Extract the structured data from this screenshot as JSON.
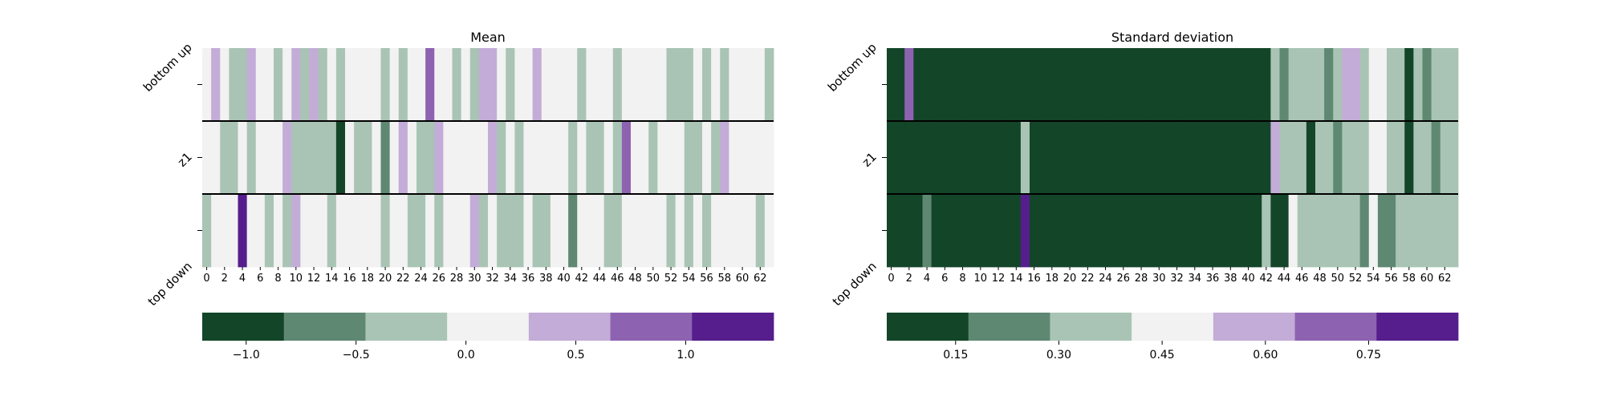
{
  "chart_data": [
    {
      "type": "heatmap",
      "title": "Mean",
      "rows": [
        "bottom up",
        "z1",
        "top down"
      ],
      "columns": [
        0,
        1,
        2,
        3,
        4,
        5,
        6,
        7,
        8,
        9,
        10,
        11,
        12,
        13,
        14,
        15,
        16,
        17,
        18,
        19,
        20,
        21,
        22,
        23,
        24,
        25,
        26,
        27,
        28,
        29,
        30,
        31,
        32,
        33,
        34,
        35,
        36,
        37,
        38,
        39,
        40,
        41,
        42,
        43,
        44,
        45,
        46,
        47,
        48,
        49,
        50,
        51,
        52,
        53,
        54,
        55,
        56,
        57,
        58,
        59,
        60,
        61,
        62,
        63
      ],
      "x_tick_labels": [
        "0",
        "2",
        "4",
        "6",
        "8",
        "10",
        "12",
        "14",
        "16",
        "18",
        "20",
        "22",
        "24",
        "26",
        "28",
        "30",
        "32",
        "34",
        "36",
        "38",
        "40",
        "42",
        "44",
        "46",
        "48",
        "50",
        "52",
        "54",
        "56",
        "58",
        "60",
        "62"
      ],
      "color_levels": [
        "#134529",
        "#5e8872",
        "#a9c4b5",
        "#f2f2f2",
        "#c3acd7",
        "#8d63b1",
        "#561e8c"
      ],
      "level_values": [
        -1.0,
        -0.6,
        -0.3,
        0.0,
        0.5,
        0.8,
        1.2
      ],
      "cells": [
        [
          3,
          4,
          3,
          2,
          2,
          4,
          3,
          3,
          2,
          3,
          4,
          2,
          4,
          2,
          3,
          2,
          3,
          3,
          3,
          3,
          2,
          3,
          2,
          3,
          3,
          5,
          3,
          3,
          2,
          3,
          2,
          4,
          4,
          3,
          2,
          3,
          3,
          4,
          3,
          3,
          3,
          3,
          2,
          3,
          3,
          3,
          2,
          3,
          3,
          3,
          3,
          3,
          2,
          2,
          2,
          3,
          2,
          3,
          2,
          3,
          3,
          3,
          3,
          2
        ],
        [
          3,
          3,
          2,
          2,
          3,
          2,
          3,
          3,
          3,
          4,
          2,
          2,
          2,
          2,
          2,
          0,
          3,
          2,
          2,
          3,
          1,
          3,
          4,
          3,
          2,
          2,
          4,
          3,
          3,
          3,
          3,
          3,
          4,
          2,
          3,
          2,
          3,
          3,
          3,
          3,
          3,
          2,
          3,
          2,
          2,
          3,
          2,
          5,
          3,
          3,
          2,
          3,
          3,
          3,
          2,
          2,
          3,
          2,
          4,
          3,
          3,
          3,
          3,
          3
        ],
        [
          2,
          3,
          3,
          3,
          6,
          3,
          3,
          2,
          3,
          2,
          4,
          3,
          3,
          3,
          2,
          3,
          3,
          3,
          3,
          3,
          2,
          3,
          3,
          2,
          2,
          3,
          2,
          3,
          3,
          3,
          4,
          2,
          3,
          2,
          2,
          2,
          3,
          2,
          2,
          3,
          3,
          1,
          3,
          3,
          3,
          2,
          2,
          3,
          3,
          3,
          3,
          3,
          2,
          3,
          2,
          3,
          2,
          3,
          3,
          3,
          3,
          3,
          2,
          3
        ]
      ],
      "colorbar": {
        "colors": [
          "#134529",
          "#5e8872",
          "#a9c4b5",
          "#f2f2f2",
          "#c3acd7",
          "#8d63b1",
          "#561e8c"
        ],
        "range": [
          -1.2,
          1.4
        ],
        "ticks": [
          -1.0,
          -0.5,
          0.0,
          0.5,
          1.0
        ],
        "tick_labels": [
          "−1.0",
          "−0.5",
          "0.0",
          "0.5",
          "1.0"
        ]
      }
    },
    {
      "type": "heatmap",
      "title": "Standard deviation",
      "rows": [
        "bottom up",
        "z1",
        "top down"
      ],
      "columns": [
        0,
        1,
        2,
        3,
        4,
        5,
        6,
        7,
        8,
        9,
        10,
        11,
        12,
        13,
        14,
        15,
        16,
        17,
        18,
        19,
        20,
        21,
        22,
        23,
        24,
        25,
        26,
        27,
        28,
        29,
        30,
        31,
        32,
        33,
        34,
        35,
        36,
        37,
        38,
        39,
        40,
        41,
        42,
        43,
        44,
        45,
        46,
        47,
        48,
        49,
        50,
        51,
        52,
        53,
        54,
        55,
        56,
        57,
        58,
        59,
        60,
        61,
        62,
        63
      ],
      "x_tick_labels": [
        "0",
        "2",
        "4",
        "6",
        "8",
        "10",
        "12",
        "14",
        "16",
        "18",
        "20",
        "22",
        "24",
        "26",
        "28",
        "30",
        "32",
        "34",
        "36",
        "38",
        "40",
        "42",
        "44",
        "46",
        "48",
        "50",
        "52",
        "54",
        "56",
        "58",
        "60",
        "62"
      ],
      "color_levels": [
        "#134529",
        "#5e8872",
        "#a9c4b5",
        "#f2f2f2",
        "#c3acd7",
        "#8d63b1",
        "#561e8c"
      ],
      "level_values": [
        0.05,
        0.2,
        0.3,
        0.45,
        0.55,
        0.7,
        0.85
      ],
      "cells": [
        [
          0,
          0,
          5,
          0,
          0,
          0,
          0,
          0,
          0,
          0,
          0,
          0,
          0,
          0,
          0,
          0,
          0,
          0,
          0,
          0,
          0,
          0,
          0,
          0,
          0,
          0,
          0,
          0,
          0,
          0,
          0,
          0,
          0,
          0,
          0,
          0,
          0,
          0,
          0,
          0,
          0,
          0,
          0,
          2,
          1,
          2,
          2,
          2,
          2,
          1,
          2,
          4,
          4,
          2,
          3,
          3,
          2,
          2,
          0,
          2,
          1,
          2,
          2,
          2
        ],
        [
          0,
          0,
          0,
          0,
          0,
          0,
          0,
          0,
          0,
          0,
          0,
          0,
          0,
          0,
          0,
          2,
          0,
          0,
          0,
          0,
          0,
          0,
          0,
          0,
          0,
          0,
          0,
          0,
          0,
          0,
          0,
          0,
          0,
          0,
          0,
          0,
          0,
          0,
          0,
          0,
          0,
          0,
          0,
          4,
          2,
          2,
          2,
          0,
          2,
          2,
          1,
          2,
          2,
          2,
          3,
          3,
          2,
          2,
          0,
          2,
          2,
          1,
          2,
          2
        ],
        [
          0,
          0,
          0,
          0,
          1,
          0,
          0,
          0,
          0,
          0,
          0,
          0,
          0,
          0,
          0,
          6,
          0,
          0,
          0,
          0,
          0,
          0,
          0,
          0,
          0,
          0,
          0,
          0,
          0,
          0,
          0,
          0,
          0,
          0,
          0,
          0,
          0,
          0,
          0,
          0,
          0,
          0,
          2,
          0,
          0,
          3,
          2,
          2,
          2,
          2,
          2,
          2,
          2,
          1,
          3,
          1,
          1,
          2,
          2,
          2,
          2,
          2,
          2,
          2
        ]
      ],
      "colorbar": {
        "colors": [
          "#134529",
          "#5e8872",
          "#a9c4b5",
          "#f2f2f2",
          "#c3acd7",
          "#8d63b1",
          "#561e8c"
        ],
        "range": [
          0.05,
          0.88
        ],
        "ticks": [
          0.15,
          0.3,
          0.45,
          0.6,
          0.75
        ],
        "tick_labels": [
          "0.15",
          "0.30",
          "0.45",
          "0.60",
          "0.75"
        ]
      }
    }
  ]
}
